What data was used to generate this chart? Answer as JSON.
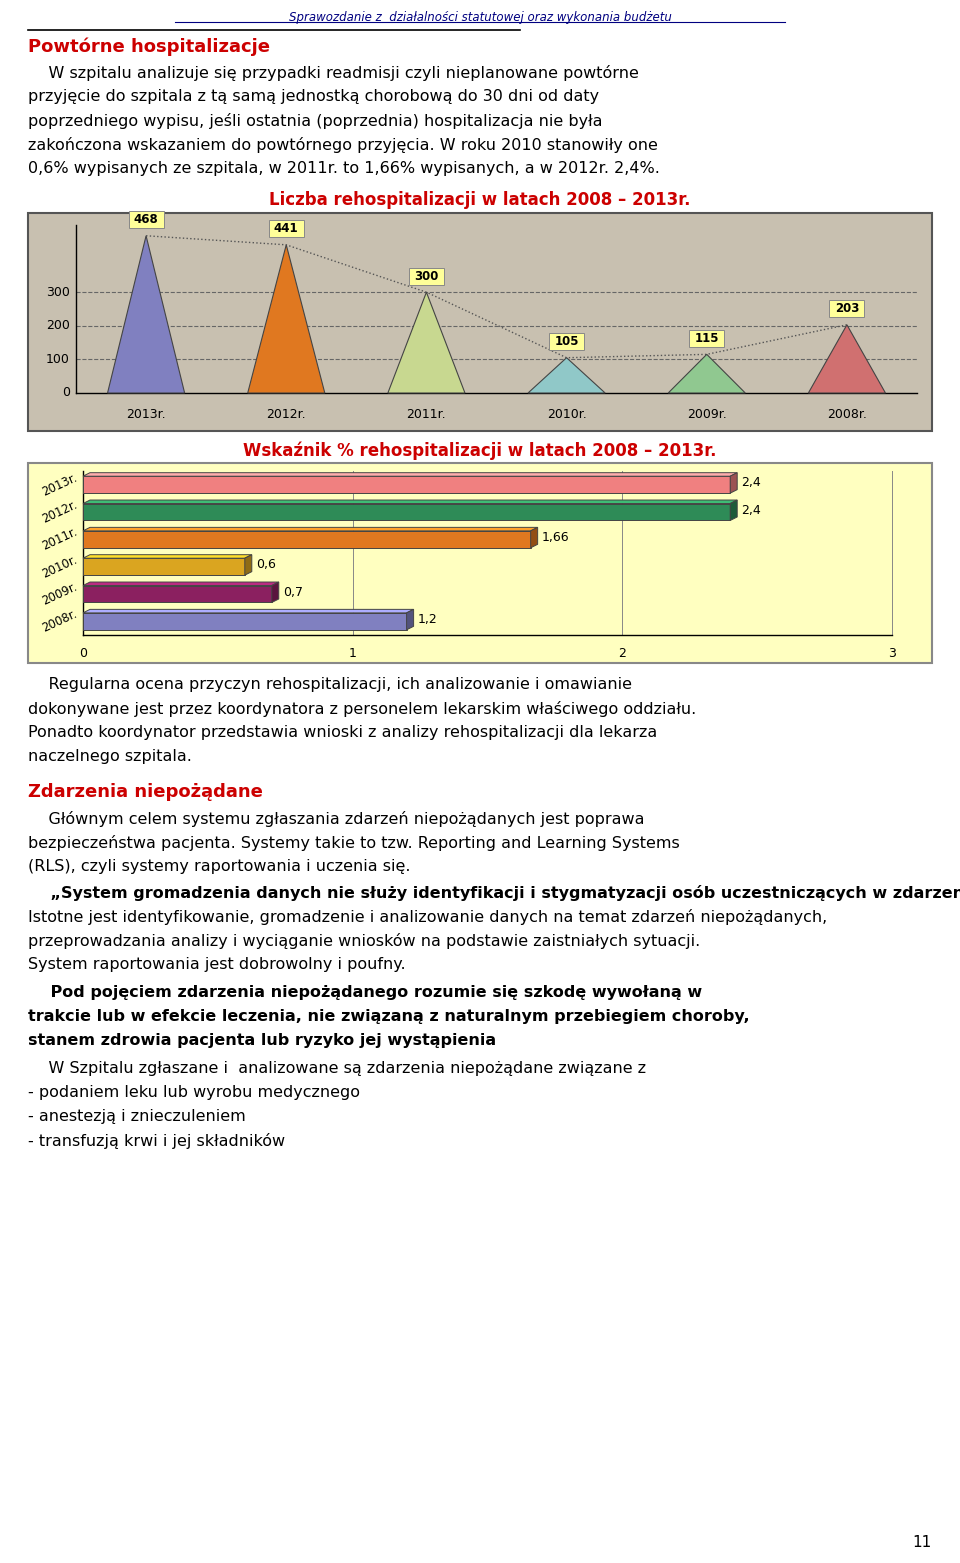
{
  "page_title": "Sprawozdanie z  działalności statutowej oraz wykonania budżetu",
  "section_title": "Powtórne hospitalizacje",
  "para1_lines": [
    "    W szpitalu analizuje się przypadki readmisji czyli nieplanowane powtórne",
    "przyjęcie do szpitala z tą samą jednostką chorobową do 30 dni od daty",
    "poprzedniego wypisu, jeśli ostatnia (poprzednia) hospitalizacja nie była",
    "zakończona wskazaniem do powtórnego przyjęcia. W roku 2010 stanowiły one",
    "0,6% wypisanych ze szpitala, w 2011r. to 1,66% wypisanych, a w 2012r. 2,4%."
  ],
  "chart1_title": "Liczba rehospitalizacji w latach 2008 – 2013r.",
  "chart1_categories": [
    "2013r.",
    "2012r.",
    "2011r.",
    "2010r.",
    "2009r.",
    "2008r."
  ],
  "chart1_values": [
    468,
    441,
    300,
    105,
    115,
    203
  ],
  "chart1_colors": [
    "#8080C0",
    "#E07820",
    "#C8D890",
    "#90C8C8",
    "#90C890",
    "#D07070"
  ],
  "chart2_title": "Wskaźnik % rehospitalizacji w latach 2008 – 2013r.",
  "chart2_categories": [
    "2013r.",
    "2012r.",
    "2011r.",
    "2010r.",
    "2009r.",
    "2008r."
  ],
  "chart2_values": [
    2.4,
    2.4,
    1.66,
    0.6,
    0.7,
    1.2
  ],
  "chart2_colors": [
    "#F08080",
    "#2E8B57",
    "#E07820",
    "#DAA520",
    "#8B2060",
    "#8080C0"
  ],
  "para2_lines": [
    "    Regularna ocena przyczyn rehospitalizacji, ich analizowanie i omawianie",
    "dokonywane jest przez koordynatora z personelem lekarskim właściwego oddziału.",
    "Ponadto koordynator przedstawia wnioski z analizy rehospitalizacji dla lekarza",
    "naczelnego szpitala."
  ],
  "section_title2": "Zdarzenia niepożądane",
  "para3_lines": [
    "    Głównym celem systemu zgłaszania zdarzeń niepożądanych jest poprawa",
    "bezpieczeństwa pacjenta. Systemy takie to tzw. Reporting and Learning Systems",
    "(RLS), czyli systemy raportowania i uczenia się."
  ],
  "para4_bold": "System gromadzenia danych nie służy identyfikacji i stygmatyzacji osób uczestniczących w zdarzeniu",
  "para4_bold_lines": [
    "    „System gromadzenia danych nie służy identyfikacji i stygmatyzacji osób",
    "uczestniczących w zdarzeniu”"
  ],
  "para4_normal_lines": [
    ". Istotne jest",
    "identyfikowanie, gromadzenie i analizowanie danych na temat zdarzeń niepożądanych,",
    "przeprowadzania analizy i wyciąganie wniosków na podstawie zaistniałych sytuacji.",
    "System raportowania jest dobrowolny i poufny."
  ],
  "para5_bold_lines": [
    "    Pod pojęciem zdarzenia niepożądanego rozumie się szkodę wywołaną w",
    "trakcie lub w efekcie leczenia, nie związaną z naturalnym przebiegiem choroby,",
    "stanem zdrowia pacjenta lub ryzyko jej wystąpienia"
  ],
  "para6_lines": [
    "    W Szpitalu zgłaszane i  analizowane są zdarzenia niepożądane związane z",
    "- podaniem leku lub wyrobu medycznego",
    "- anestezją i znieczuleniem",
    "- transfuzją krwi i jej składników"
  ],
  "page_number": "11",
  "bg_color": "#FFFFFF",
  "chart1_bg": "#C8C0B0",
  "chart2_bg": "#FFFFC0",
  "title_color": "#CC0000",
  "section_color": "#CC0000",
  "text_color": "#000000",
  "header_color": "#000080"
}
